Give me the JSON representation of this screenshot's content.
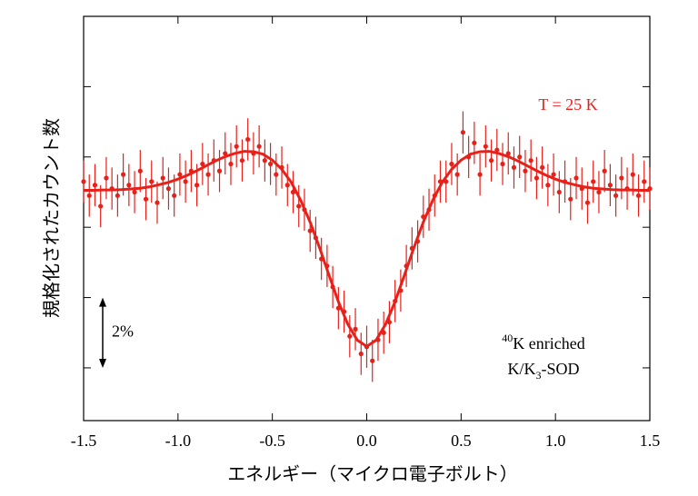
{
  "chart_data": {
    "type": "scatter",
    "xlabel": "エネルギー（マイクロ電子ボルト）",
    "ylabel": "規格化されたカウント数",
    "xlim": [
      -1.5,
      1.5
    ],
    "ylim": [
      90.5,
      102
    ],
    "xticks": [
      -1.5,
      {
        "value": -1.0,
        "label": "-1.0"
      },
      -0.5,
      {
        "value": 0,
        "label": "0.0"
      },
      0.5,
      {
        "value": 1.0,
        "label": "1.0"
      },
      1.5
    ],
    "yticks": [
      92,
      94,
      96,
      98,
      100
    ],
    "temperature_label": "T = 25 K",
    "scale_bar": {
      "label": "2%",
      "from": 92,
      "to": 94
    },
    "sample_label": {
      "mass": "40",
      "line1": "K enriched",
      "line2a": "K/K",
      "sub": "3",
      "line2b": "-SOD"
    },
    "series": [
      {
        "type": "scatter",
        "color": "#e8201a",
        "error": 0.6,
        "x": [
          -1.5,
          -1.47,
          -1.44,
          -1.41,
          -1.38,
          -1.35,
          -1.32,
          -1.29,
          -1.26,
          -1.23,
          -1.2,
          -1.17,
          -1.14,
          -1.11,
          -1.08,
          -1.05,
          -1.02,
          -0.99,
          -0.96,
          -0.93,
          -0.9,
          -0.87,
          -0.84,
          -0.81,
          -0.78,
          -0.75,
          -0.72,
          -0.69,
          -0.66,
          -0.63,
          -0.6,
          -0.57,
          -0.54,
          -0.51,
          -0.48,
          -0.45,
          -0.42,
          -0.39,
          -0.36,
          -0.33,
          -0.3,
          -0.27,
          -0.24,
          -0.21,
          -0.18,
          -0.15,
          -0.12,
          -0.09,
          -0.06,
          -0.03,
          0,
          0.03,
          0.06,
          0.09,
          0.12,
          0.15,
          0.18,
          0.21,
          0.24,
          0.27,
          0.3,
          0.33,
          0.36,
          0.39,
          0.42,
          0.45,
          0.48,
          0.51,
          0.54,
          0.57,
          0.6,
          0.63,
          0.66,
          0.69,
          0.72,
          0.75,
          0.78,
          0.81,
          0.84,
          0.87,
          0.9,
          0.93,
          0.96,
          0.99,
          1.02,
          1.05,
          1.08,
          1.11,
          1.14,
          1.17,
          1.2,
          1.23,
          1.26,
          1.29,
          1.32,
          1.35,
          1.38,
          1.41,
          1.44,
          1.47,
          1.5
        ],
        "values": [
          97.3,
          96.9,
          97.2,
          96.6,
          97.4,
          97.1,
          96.9,
          97.5,
          97.2,
          97.0,
          97.6,
          96.8,
          97.3,
          96.7,
          97.4,
          97.1,
          96.9,
          97.5,
          97.3,
          97.6,
          97.2,
          97.8,
          97.5,
          97.9,
          97.6,
          98.1,
          97.8,
          98.3,
          97.9,
          98.5,
          98.1,
          98.3,
          97.9,
          97.8,
          97.5,
          97.7,
          97.2,
          97.0,
          96.6,
          96.5,
          95.9,
          95.7,
          95.1,
          94.9,
          94.3,
          93.7,
          93.6,
          92.9,
          93.1,
          92.4,
          92.6,
          92.2,
          92.8,
          93.0,
          93.3,
          93.9,
          94.2,
          94.9,
          95.4,
          95.6,
          96.3,
          96.5,
          96.9,
          97.3,
          97.3,
          97.8,
          97.5,
          98.7,
          98.0,
          98.4,
          97.5,
          98.3,
          97.9,
          98.2,
          97.8,
          98.1,
          97.7,
          98.0,
          97.6,
          97.9,
          97.4,
          97.7,
          97.2,
          97.5,
          97.0,
          97.3,
          96.8,
          97.4,
          97.1,
          96.7,
          97.3,
          97.0,
          97.6,
          97.2,
          96.9,
          97.4,
          97.1,
          97.5,
          96.9,
          97.3,
          97.1
        ]
      },
      {
        "type": "line",
        "color": "#e8201a",
        "x": [
          -1.5,
          -1.45,
          -1.4,
          -1.35,
          -1.3,
          -1.25,
          -1.2,
          -1.15,
          -1.1,
          -1.05,
          -1.0,
          -0.95,
          -0.9,
          -0.85,
          -0.8,
          -0.75,
          -0.7,
          -0.65,
          -0.6,
          -0.55,
          -0.5,
          -0.45,
          -0.4,
          -0.35,
          -0.3,
          -0.25,
          -0.2,
          -0.15,
          -0.1,
          -0.05,
          0,
          0.05,
          0.1,
          0.15,
          0.2,
          0.25,
          0.3,
          0.35,
          0.4,
          0.45,
          0.5,
          0.55,
          0.6,
          0.65,
          0.7,
          0.75,
          0.8,
          0.85,
          0.9,
          0.95,
          1.0,
          1.05,
          1.1,
          1.15,
          1.2,
          1.25,
          1.3,
          1.35,
          1.4,
          1.45,
          1.5
        ],
        "values": [
          97.05,
          97.05,
          97.06,
          97.06,
          97.07,
          97.09,
          97.11,
          97.15,
          97.21,
          97.28,
          97.37,
          97.48,
          97.61,
          97.75,
          97.89,
          98.01,
          98.1,
          98.16,
          98.15,
          98.08,
          97.91,
          97.65,
          97.28,
          96.77,
          96.15,
          95.42,
          94.64,
          93.88,
          93.24,
          92.79,
          92.61,
          92.79,
          93.24,
          93.88,
          94.64,
          95.42,
          96.15,
          96.77,
          97.28,
          97.65,
          97.91,
          98.08,
          98.15,
          98.16,
          98.1,
          98.01,
          97.89,
          97.75,
          97.61,
          97.48,
          97.37,
          97.28,
          97.21,
          97.15,
          97.11,
          97.09,
          97.07,
          97.06,
          97.06,
          97.05,
          97.05
        ]
      }
    ]
  }
}
